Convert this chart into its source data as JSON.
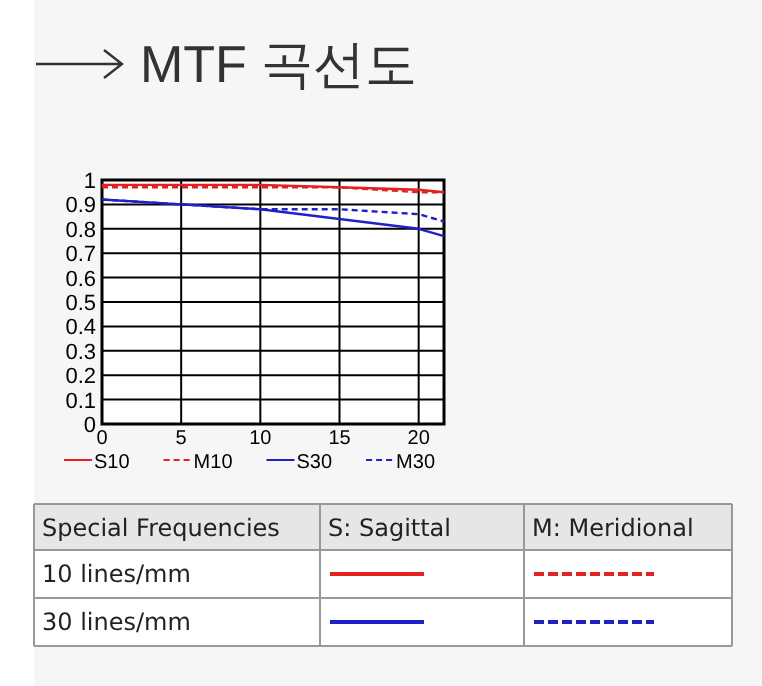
{
  "chart_data": {
    "type": "line",
    "title": "MTF 곡선도",
    "x": [
      0,
      5,
      10,
      15,
      20,
      21.6
    ],
    "series": [
      {
        "name": "S10",
        "color": "#e52020",
        "line_style": "solid",
        "values": [
          0.98,
          0.98,
          0.98,
          0.97,
          0.96,
          0.95
        ]
      },
      {
        "name": "M10",
        "color": "#e52020",
        "line_style": "dashed",
        "values": [
          0.97,
          0.97,
          0.97,
          0.97,
          0.95,
          0.95
        ]
      },
      {
        "name": "S30",
        "color": "#2020c8",
        "line_style": "solid",
        "values": [
          0.92,
          0.9,
          0.88,
          0.84,
          0.8,
          0.77
        ]
      },
      {
        "name": "M30",
        "color": "#2020c8",
        "line_style": "dashed",
        "values": [
          0.92,
          0.9,
          0.88,
          0.88,
          0.86,
          0.83
        ]
      }
    ],
    "xlim": [
      0,
      21.6
    ],
    "xticks": [
      0,
      5,
      10,
      15,
      20
    ],
    "ylim": [
      0,
      1
    ],
    "yticks": [
      0,
      0.1,
      0.2,
      0.3,
      0.4,
      0.5,
      0.6,
      0.7,
      0.8,
      0.9,
      1
    ],
    "grid": true,
    "legend": "bottom",
    "annotations": [
      "Special Frequencies",
      "S: Sagittal",
      "M: Meridional",
      "10 lines/mm",
      "30 lines/mm"
    ]
  }
}
